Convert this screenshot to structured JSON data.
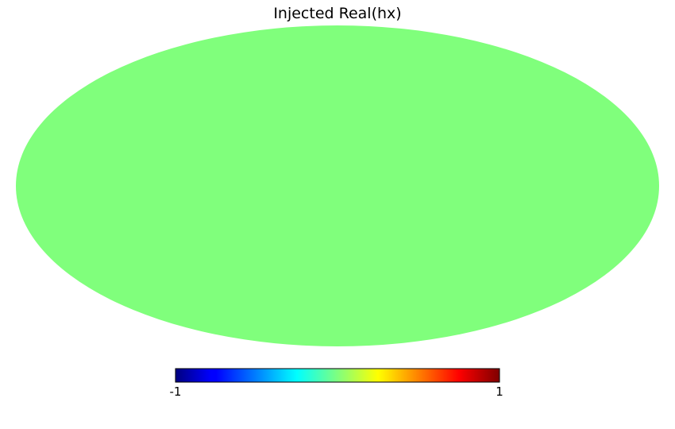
{
  "chart_data": {
    "type": "heatmap",
    "projection": "mollweide",
    "title": "Injected Real(hx)",
    "map_value": 0,
    "colormap": "jet",
    "colorbar": {
      "min": -1,
      "max": 1,
      "tick_labels": [
        "-1",
        "1"
      ],
      "stops": [
        {
          "pos": 0.0,
          "color": "#00007f"
        },
        {
          "pos": 0.11,
          "color": "#0000ff"
        },
        {
          "pos": 0.125,
          "color": "#0000ff"
        },
        {
          "pos": 0.34,
          "color": "#00ddff"
        },
        {
          "pos": 0.375,
          "color": "#00ffff"
        },
        {
          "pos": 0.5,
          "color": "#7fff7f"
        },
        {
          "pos": 0.625,
          "color": "#ffff00"
        },
        {
          "pos": 0.66,
          "color": "#ffdd00"
        },
        {
          "pos": 0.875,
          "color": "#ff0000"
        },
        {
          "pos": 0.89,
          "color": "#ee0000"
        },
        {
          "pos": 1.0,
          "color": "#7f0000"
        }
      ]
    },
    "map_color": "#80ff7c"
  }
}
